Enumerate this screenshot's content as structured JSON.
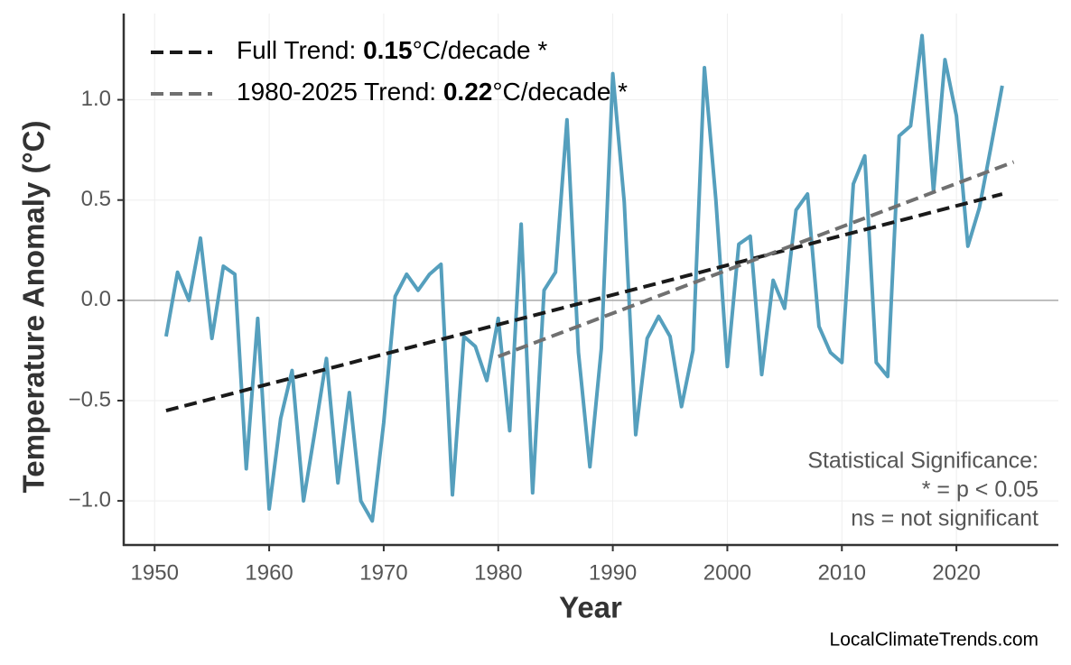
{
  "chart_data": {
    "type": "line",
    "ylabel": "Temperature Anomaly (°C)",
    "xlabel": "Year",
    "xlim": [
      1947.3,
      2028.9
    ],
    "ylim": [
      -1.22,
      1.43
    ],
    "xticks": [
      1950,
      1960,
      1970,
      1980,
      1990,
      2000,
      2010,
      2020
    ],
    "yticks": [
      {
        "value": -1,
        "label": "−1.0"
      },
      {
        "value": -0.5,
        "label": "−0.5"
      },
      {
        "value": 0,
        "label": "0.0"
      },
      {
        "value": 0.5,
        "label": "0.5"
      },
      {
        "value": 1,
        "label": "1.0"
      }
    ],
    "grid": true,
    "zero_line": true,
    "legend": "upper left",
    "series": [
      {
        "color": "#559fbd",
        "dash": false,
        "x": [
          1951,
          1952,
          1953,
          1954,
          1955,
          1956,
          1957,
          1958,
          1959,
          1960,
          1961,
          1962,
          1963,
          1964,
          1965,
          1966,
          1967,
          1968,
          1969,
          1970,
          1971,
          1972,
          1973,
          1974,
          1975,
          1976,
          1977,
          1978,
          1979,
          1980,
          1981,
          1982,
          1983,
          1984,
          1985,
          1986,
          1987,
          1988,
          1989,
          1990,
          1991,
          1992,
          1993,
          1994,
          1995,
          1996,
          1997,
          1998,
          1999,
          2000,
          2001,
          2002,
          2003,
          2004,
          2005,
          2006,
          2007,
          2008,
          2009,
          2010,
          2011,
          2012,
          2013,
          2014,
          2015,
          2016,
          2017,
          2018,
          2019,
          2020,
          2021,
          2022,
          2023,
          2024
        ],
        "values": [
          -0.18,
          0.14,
          0.0,
          0.31,
          -0.19,
          0.17,
          0.13,
          -0.84,
          -0.09,
          -1.04,
          -0.59,
          -0.35,
          -1.0,
          -0.65,
          -0.29,
          -0.91,
          -0.46,
          -1.0,
          -1.1,
          -0.61,
          0.02,
          0.13,
          0.05,
          0.13,
          0.18,
          -0.97,
          -0.18,
          -0.23,
          -0.4,
          -0.09,
          -0.65,
          0.38,
          -0.96,
          0.05,
          0.14,
          0.9,
          -0.26,
          -0.83,
          -0.24,
          1.13,
          0.49,
          -0.67,
          -0.19,
          -0.08,
          -0.18,
          -0.53,
          -0.25,
          1.16,
          0.5,
          -0.33,
          0.28,
          0.32,
          -0.37,
          0.1,
          -0.04,
          0.45,
          0.53,
          -0.13,
          -0.26,
          -0.31,
          0.58,
          0.72,
          -0.31,
          -0.38,
          0.82,
          0.87,
          1.32,
          0.54,
          1.2,
          0.92,
          0.27,
          0.46,
          0.76,
          1.07
        ]
      },
      {
        "name": "Full Trend: 0.15°C/decade *",
        "color": "#1a1a1a",
        "dash": true,
        "x": [
          1951,
          2024
        ],
        "values": [
          -0.55,
          0.53
        ]
      },
      {
        "name": "1980-2025 Trend: 0.22°C/decade *",
        "color": "#707070",
        "dash": true,
        "x": [
          1980,
          2025
        ],
        "values": [
          -0.28,
          0.69
        ]
      }
    ],
    "annotation": [
      "Statistical Significance:",
      "* = p < 0.05",
      "ns = not significant"
    ],
    "source": "LocalClimateTrends.com"
  }
}
